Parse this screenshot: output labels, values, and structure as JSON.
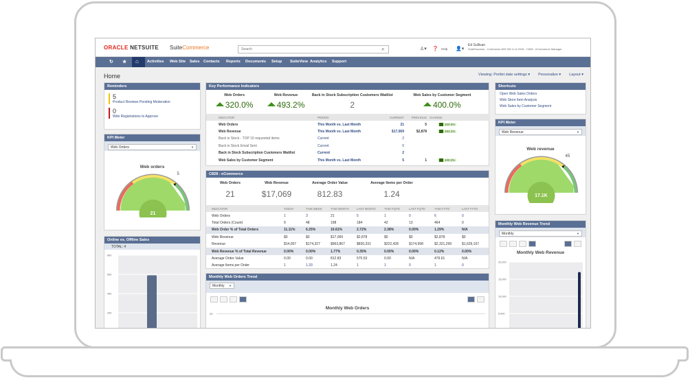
{
  "header": {
    "brand": "ORACLE",
    "brand2": "NETSUITE",
    "product_a": "Suite",
    "product_b": "Commerce",
    "search_placeholder": "Search",
    "help": "Help",
    "user_name": "Ed Sullivan",
    "user_role": "SuiteSuccess - Commerce 829 SW 4.11.2018 - C828 - eCommerce Manager"
  },
  "nav": {
    "items": [
      "Activities",
      "Web Site",
      "Sales",
      "Contacts",
      "Reports",
      "Documents",
      "Setup",
      "SuiteView",
      "Analytics",
      "Support"
    ]
  },
  "page": {
    "title": "Home",
    "viewing": "Viewing: Portlet date settings ▾",
    "personalize": "Personalize ▾",
    "layout": "Layout ▾"
  },
  "reminders": {
    "title": "Reminders",
    "items": [
      {
        "count": "5",
        "label": "Product Reviews Pending Moderation",
        "color": "#f5c400"
      },
      {
        "count": "0",
        "label": "Web Registrations to Approve",
        "color": "#c0161c"
      }
    ]
  },
  "kpi_meter_left": {
    "title": "KPI Meter",
    "select": "Web Orders",
    "gauge_title": "Web orders",
    "target": "5",
    "value": "21"
  },
  "online_offline": {
    "title": "Online vs. Offline Sales",
    "total": "TOTAL: 4",
    "y_ticks": [
      "800",
      "600",
      "400",
      "200"
    ],
    "bar_value": 590,
    "y_max": 800
  },
  "kpi": {
    "title": "Key Performance Indicators",
    "tiles": [
      {
        "label": "Web Orders",
        "value": "320.0%"
      },
      {
        "label": "Web Revenue",
        "value": "493.2%"
      },
      {
        "label": "Back in Stock Subscription Customers Waitlist",
        "value": "2"
      },
      {
        "label": "Web Sales by Customer Segment",
        "value": "400.0%"
      }
    ],
    "columns": [
      "INDICATOR",
      "PERIOD",
      "CURRENT",
      "PREVIOUS",
      "CHANGE"
    ],
    "rows": [
      {
        "indicator": "Web Orders",
        "period": "This Month vs. Last Month",
        "current": "21",
        "previous": "5",
        "change": "320.0%",
        "bold": true
      },
      {
        "indicator": "Web Revenue",
        "period": "This Month vs. Last Month",
        "current": "$17,069",
        "previous": "$2,878",
        "change": "493.2%",
        "bold": true
      },
      {
        "indicator": "Back in Stock - TOP 10 requested items",
        "period": "Current",
        "current": "2",
        "previous": "",
        "change": "",
        "bold": false
      },
      {
        "indicator": "Back in Stock Email Sent",
        "period": "Current",
        "current": "0",
        "previous": "",
        "change": "",
        "bold": false
      },
      {
        "indicator": "Back in Stock Subscription Customers Waitlist",
        "period": "Current",
        "current": "2",
        "previous": "",
        "change": "",
        "bold": true
      },
      {
        "indicator": "Web Sales by Customer Segment",
        "period": "This Month vs. Last Month",
        "current": "5",
        "previous": "1",
        "change": "400.0%",
        "bold": true
      }
    ]
  },
  "c828": {
    "title": "C828 - eCommerce",
    "tiles": [
      {
        "label": "Web Orders",
        "value": "21"
      },
      {
        "label": "Web Revenue",
        "value": "$17,069"
      },
      {
        "label": "Average Order Value",
        "value": "812.83"
      },
      {
        "label": "Average Items per Order",
        "value": "1.24"
      }
    ],
    "columns": [
      "INDICATOR",
      "TODAY",
      "THIS WEEK",
      "THIS MONTH",
      "LAST MONTH",
      "THIS FQTD",
      "LAST FQTD",
      "THIS FYTD",
      "LAST FYTD"
    ],
    "rows": [
      {
        "cells": [
          "Web Orders",
          "1",
          "3",
          "21",
          "5",
          "1",
          "0",
          "6",
          "0"
        ],
        "highlight": false,
        "links": true
      },
      {
        "cells": [
          "Total Orders (Count)",
          "9",
          "48",
          "198",
          "184",
          "42",
          "13",
          "464",
          "0"
        ],
        "highlight": false,
        "links": false
      },
      {
        "cells": [
          "Web Order % of Total Orders",
          "11.11%",
          "6.25%",
          "10.61%",
          "2.72%",
          "2.38%",
          "0.00%",
          "1.29%",
          "N/A"
        ],
        "highlight": true,
        "links": false
      },
      {
        "cells": [
          "Web Revenue",
          "$0",
          "$0",
          "$17,069",
          "$2,878",
          "$0",
          "$0",
          "$2,878",
          "$0"
        ],
        "highlight": false,
        "links": false
      },
      {
        "cells": [
          "Revenue",
          "$14,057",
          "$174,327",
          "$963,867",
          "$830,331",
          "$222,428",
          "$174,998",
          "$2,321,299",
          "$1,629,167"
        ],
        "highlight": false,
        "links": false
      },
      {
        "cells": [
          "Web Revenue % of Total Revenue",
          "0.00%",
          "0.00%",
          "1.77%",
          "0.35%",
          "0.00%",
          "0.00%",
          "0.12%",
          "0.00%"
        ],
        "highlight": true,
        "links": false
      },
      {
        "cells": [
          "Average Order Value",
          "0.00",
          "0.00",
          "812.83",
          "575.53",
          "0.00",
          "N/A",
          "479.61",
          "N/A"
        ],
        "highlight": false,
        "links": false
      },
      {
        "cells": [
          "Average Items per Order",
          "1",
          "1.33",
          "1.24",
          "1",
          "1",
          "0",
          "1",
          "0"
        ],
        "highlight": false,
        "links": true
      }
    ]
  },
  "web_orders_trend": {
    "title": "Monthly Web Orders Trend",
    "select": "Monthly",
    "chart_title": "Monthly Web Orders",
    "y_ticks": [
      "25"
    ]
  },
  "shortcuts": {
    "title": "Shortcuts",
    "items": [
      "Open Web Sales Orders",
      "Web Store Item Analysis",
      "Web Sales by Customer Segment"
    ]
  },
  "kpi_meter_right": {
    "title": "KPI Meter",
    "select": "Web Revenue",
    "gauge_title": "Web revenue",
    "target": "45",
    "value": "17.1K"
  },
  "web_revenue_trend": {
    "title": "Monthly Web Revenue Trend",
    "select": "Monthly",
    "chart_title": "Monthly Web Revenue",
    "y_ticks": [
      "20,000",
      "15,000",
      "10,000",
      "5,000"
    ],
    "bar_value": 17069,
    "y_max": 20000
  },
  "colors": {
    "header_bar": "#5a6f94",
    "nav_active": "#233b6a",
    "positive": "#2d6a0a",
    "link": "#2e4a82"
  }
}
